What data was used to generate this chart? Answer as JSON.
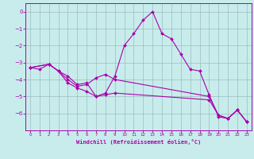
{
  "background_color": "#c8ecec",
  "line_color": "#aa00aa",
  "grid_color": "#9bbcbc",
  "xlabel": "Windchill (Refroidissement éolien,°C)",
  "xlim": [
    -0.5,
    23.5
  ],
  "ylim": [
    -7.0,
    0.5
  ],
  "yticks": [
    0,
    -1,
    -2,
    -3,
    -4,
    -5,
    -6
  ],
  "xticks": [
    0,
    1,
    2,
    3,
    4,
    5,
    6,
    7,
    8,
    9,
    10,
    11,
    12,
    13,
    14,
    15,
    16,
    17,
    18,
    19,
    20,
    21,
    22,
    23
  ],
  "series1_x": [
    0,
    1,
    2,
    3,
    4,
    5,
    6,
    7,
    8,
    9,
    10,
    11,
    12,
    13,
    14,
    15,
    16,
    17,
    18,
    19,
    20,
    21,
    22,
    23
  ],
  "series1_y": [
    -3.3,
    -3.4,
    -3.1,
    -3.5,
    -3.8,
    -4.3,
    -4.2,
    -5.0,
    -4.8,
    -3.8,
    -2.0,
    -1.3,
    -0.5,
    0.0,
    -1.3,
    -1.6,
    -2.5,
    -3.4,
    -3.5,
    -4.9,
    -6.2,
    -6.3,
    -5.8,
    -6.5
  ],
  "series2_x": [
    0,
    2,
    3,
    4,
    5,
    6,
    7,
    8,
    9,
    19,
    20,
    21,
    22,
    23
  ],
  "series2_y": [
    -3.3,
    -3.1,
    -3.5,
    -4.0,
    -4.4,
    -4.3,
    -3.9,
    -3.7,
    -4.0,
    -5.0,
    -6.1,
    -6.3,
    -5.8,
    -6.5
  ],
  "series3_x": [
    0,
    2,
    3,
    4,
    5,
    6,
    7,
    8,
    9,
    19,
    20,
    21,
    22,
    23
  ],
  "series3_y": [
    -3.3,
    -3.1,
    -3.5,
    -4.2,
    -4.5,
    -4.7,
    -5.0,
    -4.9,
    -4.8,
    -5.2,
    -6.1,
    -6.3,
    -5.8,
    -6.5
  ]
}
